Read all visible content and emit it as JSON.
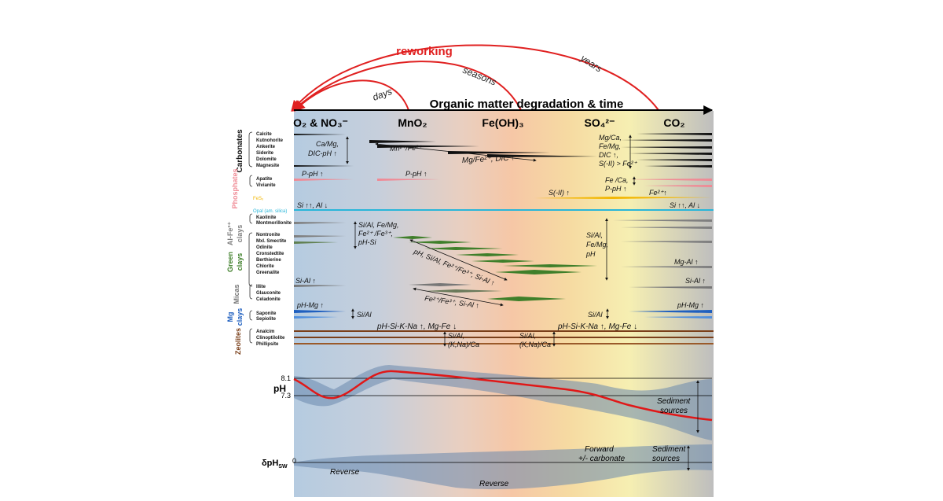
{
  "top": {
    "axis_title": "Organic matter degradation & time",
    "reworking": "reworking",
    "days": "days",
    "seasons": "seasons",
    "years": "years"
  },
  "zones": [
    {
      "key": "o2",
      "label": "O₂ & NO₃⁻"
    },
    {
      "key": "mno2",
      "label": "MnO₂"
    },
    {
      "key": "feoh",
      "label": "Fe(OH)₃"
    },
    {
      "key": "so4",
      "label": "SO₄²⁻"
    },
    {
      "key": "co2",
      "label": "CO₂"
    }
  ],
  "groups": {
    "carbonates": "Carbonates",
    "phosphates": "Phosphates",
    "fesx": "FeSₓ",
    "opal": "Opal (am. silica)",
    "alfe_a": "Al-Fe³⁺",
    "alfe_b": "clays",
    "green_a": "Green",
    "green_b": "clays",
    "micas": "Micas",
    "mg_a": "Mg",
    "mg_b": "clays",
    "zeolites": "Zeolites"
  },
  "minerals": {
    "carbonates": [
      "Calcite",
      "Kutnohorite",
      "Ankerite",
      "Siderite",
      "Dolomite",
      "Magnesite"
    ],
    "phosphates": [
      "Apatite",
      "Vivianite"
    ],
    "alfe": [
      "Kaolinite",
      "Montmorillonite"
    ],
    "green": [
      "Nontronite",
      "Mxl. Smectite",
      "Odinite",
      "Cronstedtite",
      "Berthierine",
      "Chlorite",
      "Greenalite"
    ],
    "micas": [
      "Illite",
      "Glauconite",
      "Celadonite"
    ],
    "mgclays": [
      "Saponite",
      "Sepiolite"
    ],
    "zeolites": [
      "Analcim",
      "Clinoptilolite",
      "Phillipsite"
    ]
  },
  "annotations": {
    "ca_mg": "Ca/Mg,",
    "dic_ph": "DIC-pH ↑",
    "mn_fe": "Mn²⁺/Fe²⁺",
    "mg_fe_dic": "Mg/Fe²⁺, DIC ↑",
    "mgca_1": "Mg/Ca,",
    "mgca_2": "Fe/Mg,",
    "mgca_3": "DIC ↑,",
    "mgca_4": "S(-II) > Fe²⁺",
    "pph_1": "P-pH ↑",
    "pph_2": "P-pH ↑",
    "feca_1": "Fe /Ca,",
    "feca_2": "P-pH ↑",
    "s2": "S(-II) ↑",
    "fe2": "Fe²⁺↑",
    "si_al_left": "Si ↑↑, Al ↓",
    "si_al_right": "Si ↑↑, Al ↓",
    "clay_1": "Si/Al, Fe/Mg,",
    "clay_2": "Fe²⁺ /Fe³⁺,",
    "clay_3": "pH-Si",
    "green_diag": "pH, Si/Al, Fe²⁺/Fe³⁺, Si-Al ↑",
    "sialfe_1": "Si/Al,",
    "sialfe_2": "Fe/Mg,",
    "sialfe_3": "pH",
    "mgal": "Mg-Al ↑",
    "sial_left": "Si-Al ↑",
    "sial_right": "Si-Al ↑",
    "mica_diag": "Fe²⁺/Fe³⁺, Si-Al ↑",
    "phmg_left": "pH-Mg ↑",
    "phmg_right": "pH-Mg ↑",
    "sial_mg_left": "Si/Al",
    "sial_mg_right": "Si/Al",
    "zeo_left": "pH-Si-K-Na ↑, Mg-Fe ↓",
    "zeo_right": "pH-Si-K-Na ↑, Mg-Fe ↓",
    "zeo_r1": "Si/Al,",
    "zeo_r2": "(K,Na)/Ca",
    "zeo_l1": "Si/Al,",
    "zeo_l2": "(K,Na)/Ca"
  },
  "ph": {
    "label": "pH",
    "tick_high": "8.1",
    "tick_low": "7.3",
    "sediment_1": "Sediment",
    "sediment_2": "sources"
  },
  "dph": {
    "label_main": "δpH",
    "label_sub": "SW",
    "zero": "0",
    "reverse_1": "Reverse",
    "reverse_2": "Reverse",
    "forward_1": "Forward",
    "forward_2": "+/- carbonate",
    "sediment_1": "Sediment",
    "sediment_2": "sources"
  },
  "colors": {
    "reworking": "#e02020",
    "phosphates": "#f08a95",
    "fesx": "#f2b705",
    "opal": "#29b6d9",
    "alfe": "#7f7f7f",
    "green": "#3f7f2a",
    "micas": "#777777",
    "mgclays": "#1f5fbf",
    "zeolites": "#7a3f1a",
    "ph_curve": "#e01818"
  }
}
